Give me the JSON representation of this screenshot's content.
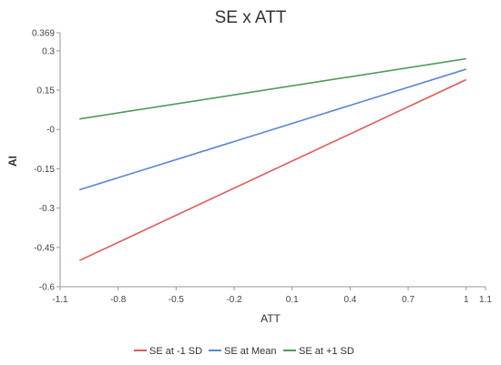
{
  "chart_data": {
    "type": "line",
    "title": "SE x ATT",
    "xlabel": "ATT",
    "ylabel": "AI",
    "xlim": [
      -1.1,
      1.1
    ],
    "ylim": [
      -0.6,
      0.369
    ],
    "xticks": [
      "-1.1",
      "-0.8",
      "-0.5",
      "-0.2",
      "0.1",
      "0.4",
      "0.7",
      "1",
      "1.1"
    ],
    "xtick_values": [
      -1.1,
      -0.8,
      -0.5,
      -0.2,
      0.1,
      0.4,
      0.7,
      1,
      1.1
    ],
    "yticks": [
      "0.369",
      "0.3",
      "0.15",
      "-0",
      "-0.15",
      "-0.3",
      "-0.45",
      "-0.6"
    ],
    "ytick_values": [
      0.369,
      0.3,
      0.15,
      0,
      -0.15,
      -0.3,
      -0.45,
      -0.6
    ],
    "grid": false,
    "legend_position": "bottom",
    "series": [
      {
        "name": "SE at -1 SD",
        "color": "#e05a5a",
        "x": [
          -1,
          1
        ],
        "y": [
          -0.5,
          0.19
        ]
      },
      {
        "name": "SE at Mean",
        "color": "#5b84d6",
        "x": [
          -1,
          1
        ],
        "y": [
          -0.23,
          0.23
        ]
      },
      {
        "name": "SE at +1 SD",
        "color": "#4e9a5b",
        "x": [
          -1,
          1
        ],
        "y": [
          0.04,
          0.27
        ]
      }
    ]
  }
}
